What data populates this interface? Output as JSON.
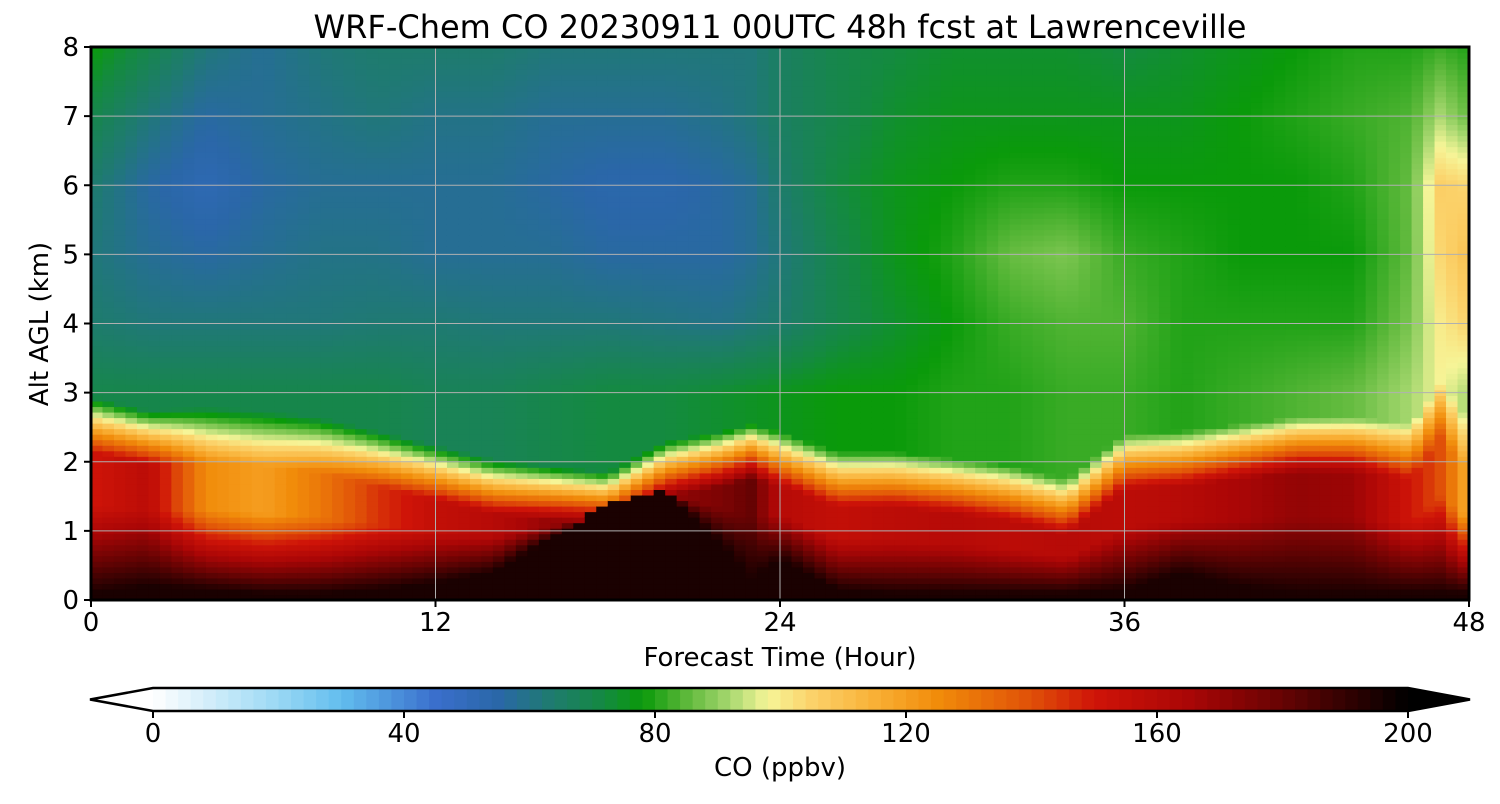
{
  "chart_data": {
    "type": "heatmap",
    "title": "WRF-Chem CO  20230911 00UTC 48h fcst at Lawrenceville",
    "xlabel": "Forecast Time (Hour)",
    "ylabel": "Alt AGL (km)",
    "x_ticks": [
      "0",
      "12",
      "24",
      "36",
      "48"
    ],
    "y_ticks": [
      "0",
      "1",
      "2",
      "3",
      "4",
      "5",
      "6",
      "7",
      "8"
    ],
    "xlim": [
      0,
      48
    ],
    "ylim": [
      0,
      8
    ],
    "grid": true,
    "colorbar": {
      "label": "CO  (ppbv)",
      "ticks": [
        "0",
        "40",
        "80",
        "120",
        "160",
        "200"
      ],
      "range": [
        0,
        200
      ],
      "extend": "both",
      "orientation": "horizontal",
      "placement": "bottom"
    },
    "colormap_stops": [
      {
        "v": 0,
        "c": "#ffffff"
      },
      {
        "v": 20,
        "c": "#9ad8f4"
      },
      {
        "v": 30,
        "c": "#62bdee"
      },
      {
        "v": 45,
        "c": "#3a6fcc"
      },
      {
        "v": 55,
        "c": "#2a67a8"
      },
      {
        "v": 63,
        "c": "#1f7a72"
      },
      {
        "v": 72,
        "c": "#148a40"
      },
      {
        "v": 78,
        "c": "#0a9a0a"
      },
      {
        "v": 85,
        "c": "#5cb83a"
      },
      {
        "v": 92,
        "c": "#a8d870"
      },
      {
        "v": 98,
        "c": "#f6f598"
      },
      {
        "v": 105,
        "c": "#fbd26a"
      },
      {
        "v": 115,
        "c": "#f9b036"
      },
      {
        "v": 125,
        "c": "#f18c0a"
      },
      {
        "v": 140,
        "c": "#e05008"
      },
      {
        "v": 150,
        "c": "#cf1408"
      },
      {
        "v": 165,
        "c": "#aa0606"
      },
      {
        "v": 180,
        "c": "#660303"
      },
      {
        "v": 200,
        "c": "#000000"
      }
    ],
    "x_hours": [
      0,
      2,
      4,
      6,
      8,
      10,
      12,
      14,
      16,
      18,
      20,
      22,
      23,
      24,
      26,
      28,
      30,
      32,
      34,
      36,
      38,
      40,
      42,
      44,
      46,
      47,
      48
    ],
    "boundary_layer_top_km": [
      2.6,
      2.4,
      2.45,
      2.4,
      2.3,
      2.1,
      1.9,
      1.7,
      1.6,
      1.5,
      1.95,
      2.1,
      2.2,
      2.1,
      1.8,
      1.8,
      1.7,
      1.6,
      1.4,
      2.05,
      2.1,
      2.2,
      2.3,
      2.3,
      2.2,
      2.8,
      2.3
    ],
    "surface_peak_km": [
      0.1,
      0.2,
      0.15,
      0.1,
      0.1,
      0.15,
      0.25,
      0.4,
      0.9,
      1.4,
      1.6,
      0.8,
      0.3,
      0.6,
      0.15,
      0.1,
      0.1,
      0.1,
      0.1,
      0.15,
      0.4,
      0.2,
      0.1,
      0.1,
      0.1,
      0.1,
      0.1
    ],
    "boundary_layer_co_ppbv": [
      150,
      158,
      125,
      120,
      130,
      145,
      155,
      160,
      170,
      180,
      170,
      175,
      180,
      160,
      155,
      158,
      160,
      158,
      160,
      158,
      160,
      165,
      170,
      168,
      150,
      140,
      115
    ],
    "free_troposphere_co_ppbv": [
      {
        "z": 3.0,
        "v": [
          70,
          70,
          70,
          70,
          70,
          70,
          68,
          68,
          70,
          72,
          72,
          74,
          75,
          76,
          78,
          78,
          80,
          80,
          82,
          82,
          80,
          82,
          84,
          86,
          92,
          98,
          92
        ]
      },
      {
        "z": 4.0,
        "v": [
          64,
          62,
          62,
          62,
          62,
          63,
          63,
          62,
          62,
          62,
          61,
          60,
          62,
          64,
          70,
          74,
          78,
          82,
          84,
          84,
          80,
          80,
          80,
          80,
          88,
          100,
          105
        ]
      },
      {
        "z": 5.0,
        "v": [
          62,
          58,
          56,
          58,
          60,
          60,
          58,
          58,
          58,
          56,
          56,
          56,
          58,
          62,
          70,
          76,
          80,
          86,
          88,
          82,
          80,
          78,
          78,
          78,
          86,
          104,
          110
        ]
      },
      {
        "z": 6.0,
        "v": [
          64,
          56,
          52,
          56,
          58,
          58,
          58,
          58,
          56,
          54,
          54,
          56,
          58,
          64,
          72,
          76,
          78,
          80,
          80,
          78,
          78,
          78,
          78,
          80,
          86,
          106,
          104
        ]
      },
      {
        "z": 7.0,
        "v": [
          70,
          62,
          56,
          58,
          60,
          62,
          60,
          60,
          58,
          58,
          58,
          60,
          62,
          66,
          70,
          74,
          76,
          76,
          76,
          76,
          76,
          78,
          80,
          82,
          84,
          92,
          86
        ]
      },
      {
        "z": 8.0,
        "v": [
          78,
          70,
          62,
          58,
          62,
          64,
          64,
          64,
          62,
          62,
          62,
          62,
          62,
          66,
          70,
          72,
          74,
          74,
          74,
          72,
          74,
          76,
          78,
          80,
          80,
          82,
          80
        ]
      }
    ]
  }
}
